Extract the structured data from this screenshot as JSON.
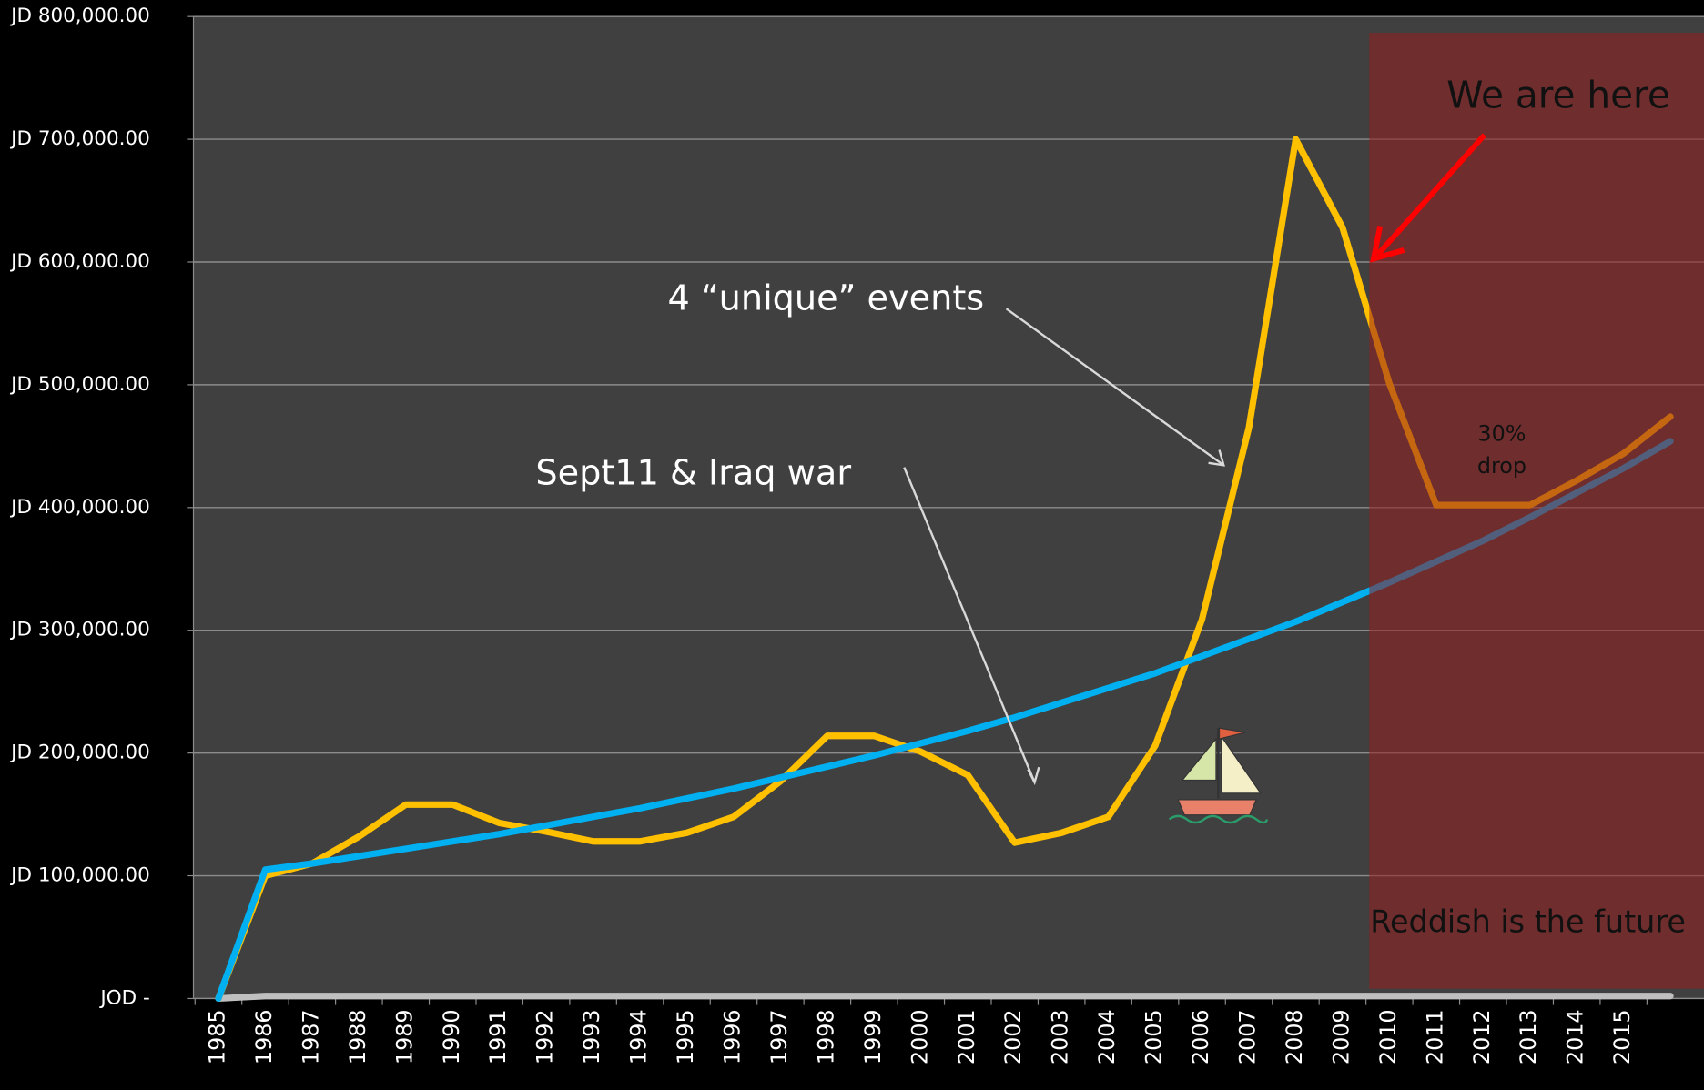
{
  "chart_data": {
    "type": "line",
    "categories": [
      "1985",
      "1986",
      "1987",
      "1988",
      "1989",
      "1990",
      "1991",
      "1992",
      "1993",
      "1994",
      "1995",
      "1996",
      "1997",
      "1998",
      "1999",
      "2000",
      "2001",
      "2002",
      "2003",
      "2004",
      "2005",
      "2006",
      "2007",
      "2008",
      "2009",
      "2010",
      "2011",
      "2012",
      "2013",
      "2014",
      "2015",
      null
    ],
    "series": [
      {
        "color": "#ffc000",
        "values": [
          0,
          100000,
          110000,
          132000,
          158000,
          158000,
          143000,
          136000,
          128000,
          128000,
          135000,
          148000,
          177000,
          214000,
          214000,
          201000,
          182000,
          127000,
          135000,
          148000,
          206000,
          309000,
          465000,
          700000,
          628000,
          501000,
          402000,
          402000,
          402000,
          422000,
          444000,
          474000
        ]
      },
      {
        "color": "#00b0f0",
        "values": [
          0,
          105000,
          110000,
          116000,
          122000,
          128000,
          134000,
          141000,
          148000,
          155000,
          163000,
          171000,
          180000,
          189000,
          198000,
          208000,
          218000,
          229000,
          241000,
          253000,
          265000,
          279000,
          293000,
          307000,
          323000,
          339000,
          356000,
          373000,
          392000,
          412000,
          432000,
          454000
        ]
      },
      {
        "color": "#bfbfbf",
        "values": [
          0,
          2000,
          2000,
          2000,
          2000,
          2000,
          2000,
          2000,
          2000,
          2000,
          2000,
          2000,
          2000,
          2000,
          2000,
          2000,
          2000,
          2000,
          2000,
          2000,
          2000,
          2000,
          2000,
          2000,
          2000,
          2000,
          2000,
          2000,
          2000,
          2000,
          2000,
          2000
        ]
      }
    ],
    "ylim": [
      0,
      800000
    ],
    "yticks": [
      {
        "value": 0,
        "label": "JOD -"
      },
      {
        "value": 100000,
        "label": "JD 100,000.00"
      },
      {
        "value": 200000,
        "label": "JD 200,000.00"
      },
      {
        "value": 300000,
        "label": "JD 300,000.00"
      },
      {
        "value": 400000,
        "label": "JD 400,000.00"
      },
      {
        "value": 500000,
        "label": "JD 500,000.00"
      },
      {
        "value": 600000,
        "label": "JD 600,000.00"
      },
      {
        "value": 700000,
        "label": "JD 700,000.00"
      },
      {
        "value": 800000,
        "label": "JD 800,000.00"
      }
    ],
    "grid": true,
    "annotations": [
      "We are here",
      "4 “unique” events",
      "Sept11 & Iraq war",
      "30%",
      "drop",
      "Reddish is the future"
    ]
  }
}
